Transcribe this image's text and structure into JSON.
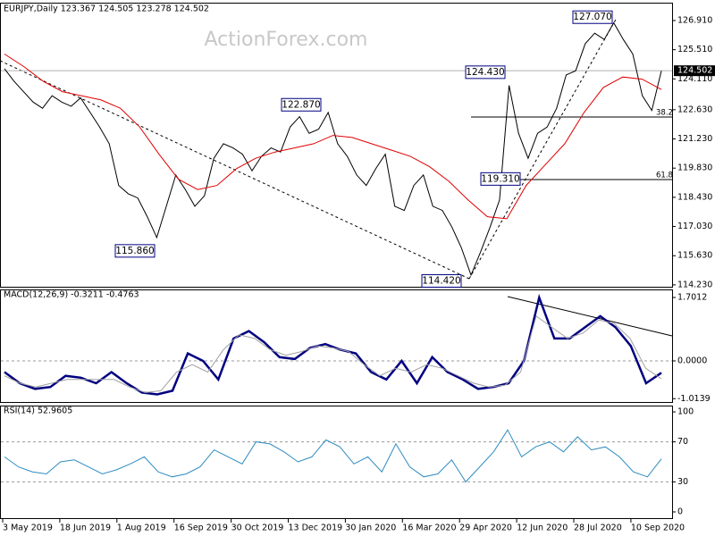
{
  "watermark": "ActionForex.com",
  "x_axis": {
    "labels": [
      "3 May 2019",
      "18 Jun 2019",
      "1 Aug 2019",
      "16 Sep 2019",
      "30 Oct 2019",
      "13 Dec 2019",
      "30 Jan 2020",
      "16 Mar 2020",
      "29 Apr 2020",
      "12 Jun 2020",
      "28 Jul 2020",
      "10 Sep 2020"
    ]
  },
  "chart_data": [
    {
      "type": "line",
      "title": "EURJPY,Daily  123.367 124.505 123.278 124.502",
      "ylim": [
        114.14,
        127.68
      ],
      "yticks": [
        {
          "value": 114.23,
          "label": "114.230"
        },
        {
          "value": 115.63,
          "label": "115.630"
        },
        {
          "value": 117.03,
          "label": "117.030"
        },
        {
          "value": 118.43,
          "label": "118.430"
        },
        {
          "value": 119.83,
          "label": "119.830"
        },
        {
          "value": 121.23,
          "label": "121.230"
        },
        {
          "value": 122.63,
          "label": "122.630"
        },
        {
          "value": 124.11,
          "label": "124.110"
        },
        {
          "value": 125.51,
          "label": "125.510"
        },
        {
          "value": 126.91,
          "label": "126.910"
        }
      ],
      "grid": false,
      "last_price": 124.502,
      "annotations": [
        {
          "value": 127.07,
          "label": "127.070"
        },
        {
          "value": 124.43,
          "label": "124.430"
        },
        {
          "value": 122.87,
          "label": "122.870"
        },
        {
          "value": 119.31,
          "label": "119.310"
        },
        {
          "value": 115.86,
          "label": "115.860"
        },
        {
          "value": 114.42,
          "label": "114.420"
        }
      ],
      "fib_levels": [
        38.2,
        61.8
      ],
      "series": [
        {
          "color": "#000000",
          "values": [
            124.6,
            124.0,
            123.5,
            123.0,
            122.7,
            123.3,
            123.0,
            122.8,
            123.2,
            122.5,
            121.8,
            121.0,
            119.0,
            118.6,
            118.4,
            117.5,
            116.5,
            118.0,
            119.5,
            118.8,
            118.0,
            118.5,
            120.3,
            121.0,
            120.8,
            120.5,
            119.7,
            120.4,
            120.8,
            120.6,
            121.8,
            122.3,
            121.5,
            121.7,
            122.5,
            121.0,
            120.4,
            119.5,
            119.0,
            119.8,
            120.5,
            118.0,
            117.8,
            119.0,
            119.5,
            118.0,
            117.8,
            117.0,
            116.0,
            114.7,
            115.8,
            117.0,
            118.3,
            123.8,
            121.5,
            120.3,
            121.5,
            121.8,
            122.7,
            124.3,
            124.5,
            125.8,
            126.3,
            126.0,
            126.8,
            126.0,
            125.3,
            123.3,
            122.6,
            124.5
          ]
        },
        {
          "color": "#e00000",
          "values": [
            125.3,
            124.7,
            124.0,
            123.5,
            123.3,
            123.1,
            122.7,
            121.8,
            120.5,
            119.3,
            118.8,
            119.0,
            119.8,
            120.3,
            120.6,
            120.8,
            121.0,
            121.4,
            121.3,
            121.0,
            120.7,
            120.4,
            119.9,
            119.2,
            118.3,
            117.5,
            117.4,
            119.0,
            120.0,
            121.0,
            122.5,
            123.7,
            124.2,
            124.1,
            123.6
          ]
        }
      ]
    },
    {
      "type": "line",
      "title": "MACD(12,26,9) -0.3211 -0.4763",
      "ylim": [
        -1.103,
        1.893
      ],
      "yticks": [
        -1.0139,
        {
          "value": 0,
          "label": "0.0000"
        },
        1.7012
      ],
      "grid": true,
      "series": [
        {
          "color": "#000080",
          "values": [
            -0.3,
            -0.6,
            -0.75,
            -0.7,
            -0.4,
            -0.45,
            -0.6,
            -0.3,
            -0.6,
            -0.85,
            -0.9,
            -0.8,
            0.2,
            0.0,
            -0.5,
            0.6,
            0.8,
            0.5,
            0.1,
            0.05,
            0.35,
            0.45,
            0.3,
            0.2,
            -0.3,
            -0.5,
            0.0,
            -0.6,
            0.1,
            -0.3,
            -0.5,
            -0.75,
            -0.7,
            -0.6,
            0.0,
            1.7,
            0.6,
            0.6,
            0.9,
            1.2,
            0.9,
            0.4,
            -0.6,
            -0.32
          ]
        },
        {
          "color": "#a0a0a0",
          "values": [
            -0.4,
            -0.6,
            -0.7,
            -0.6,
            -0.5,
            -0.5,
            -0.5,
            -0.5,
            -0.7,
            -0.85,
            -0.8,
            -0.3,
            -0.1,
            -0.3,
            0.3,
            0.7,
            0.6,
            0.3,
            0.15,
            0.25,
            0.4,
            0.35,
            0.25,
            -0.1,
            -0.4,
            -0.2,
            -0.3,
            -0.1,
            -0.2,
            -0.4,
            -0.6,
            -0.7,
            -0.65,
            -0.3,
            1.2,
            0.9,
            0.6,
            0.75,
            1.1,
            1.0,
            0.6,
            -0.2,
            -0.48
          ]
        }
      ]
    },
    {
      "type": "line",
      "title": "RSI(14) 52.9605",
      "ylim": [
        -6.25,
        105.4
      ],
      "yticks": [
        0,
        30,
        70,
        100
      ],
      "grid": true,
      "series": [
        {
          "color": "#2e8bc0",
          "values": [
            55,
            45,
            40,
            38,
            50,
            52,
            45,
            38,
            42,
            48,
            55,
            40,
            35,
            38,
            45,
            62,
            55,
            48,
            70,
            68,
            60,
            50,
            55,
            72,
            65,
            48,
            55,
            40,
            68,
            45,
            35,
            38,
            52,
            30,
            45,
            60,
            82,
            55,
            65,
            70,
            60,
            75,
            62,
            65,
            55,
            40,
            35,
            53
          ]
        }
      ]
    }
  ]
}
